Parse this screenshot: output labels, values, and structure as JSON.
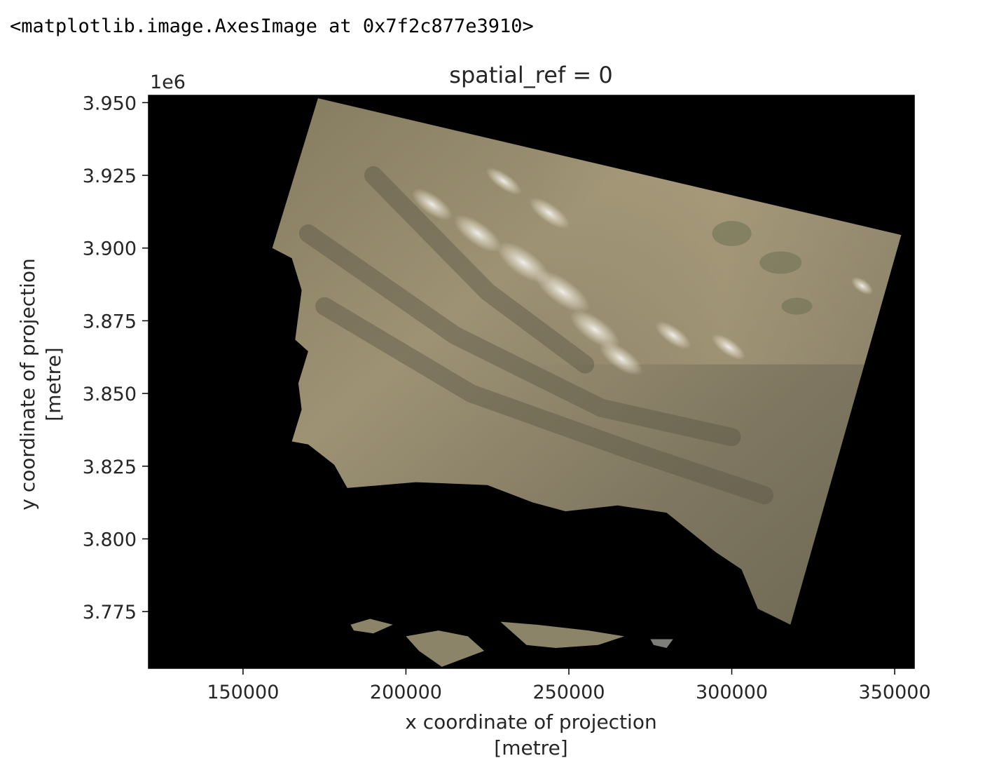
{
  "output_repr": "<matplotlib.image.AxesImage at 0x7f2c877e3910>",
  "colors": {
    "background": "#000000",
    "axis": "#000000",
    "text": "#262626"
  },
  "chart_data": {
    "type": "raster-image",
    "title": "spatial_ref = 0",
    "xlabel_line1": "x coordinate of projection",
    "xlabel_line2": "[metre]",
    "ylabel_line1": "y coordinate of projection",
    "ylabel_line2": "[metre]",
    "y_offset_label": "1e6",
    "xlim": [
      121000,
      356000
    ],
    "ylim": [
      3.7555,
      3.9525
    ],
    "x_ticks": [
      150000,
      200000,
      250000,
      300000,
      350000
    ],
    "x_tick_labels": [
      "150000",
      "200000",
      "250000",
      "300000",
      "350000"
    ],
    "y_ticks": [
      3.775,
      3.8,
      3.825,
      3.85,
      3.875,
      3.9,
      3.925,
      3.95
    ],
    "y_tick_labels": [
      "3.775",
      "3.800",
      "3.825",
      "3.850",
      "3.875",
      "3.900",
      "3.925",
      "3.950"
    ],
    "image_footprint": [
      [
        159000,
        3.9
      ],
      [
        173000,
        3.9515
      ],
      [
        352000,
        3.9045
      ],
      [
        318000,
        3.7705
      ],
      [
        308000,
        3.776
      ],
      [
        303000,
        3.7895
      ],
      [
        295000,
        3.7955
      ],
      [
        280000,
        3.809
      ],
      [
        265000,
        3.8115
      ],
      [
        249000,
        3.8095
      ],
      [
        239000,
        3.8125
      ],
      [
        225000,
        3.8185
      ],
      [
        203000,
        3.8195
      ],
      [
        182000,
        3.8175
      ],
      [
        178000,
        3.8255
      ],
      [
        170000,
        3.8325
      ],
      [
        165000,
        3.8335
      ],
      [
        168000,
        3.8445
      ],
      [
        167000,
        3.8535
      ],
      [
        170000,
        3.8645
      ],
      [
        166000,
        3.8685
      ],
      [
        168000,
        3.8855
      ],
      [
        165000,
        3.8965
      ]
    ],
    "islands": [
      [
        [
          183000,
          3.7705
        ],
        [
          189000,
          3.7725
        ],
        [
          196000,
          3.7705
        ],
        [
          190000,
          3.7675
        ],
        [
          184000,
          3.7685
        ]
      ],
      [
        [
          200000,
          3.7665
        ],
        [
          210000,
          3.7685
        ],
        [
          219000,
          3.7665
        ],
        [
          224000,
          3.7615
        ],
        [
          211000,
          3.756
        ],
        [
          204000,
          3.7615
        ]
      ],
      [
        [
          229000,
          3.7715
        ],
        [
          240000,
          3.7705
        ],
        [
          256000,
          3.7685
        ],
        [
          267000,
          3.7665
        ],
        [
          259000,
          3.7635
        ],
        [
          246000,
          3.7625
        ],
        [
          237000,
          3.7635
        ]
      ],
      [
        [
          275000,
          3.7655
        ],
        [
          282000,
          3.7655
        ],
        [
          280000,
          3.7625
        ],
        [
          276000,
          3.7635
        ]
      ]
    ]
  }
}
